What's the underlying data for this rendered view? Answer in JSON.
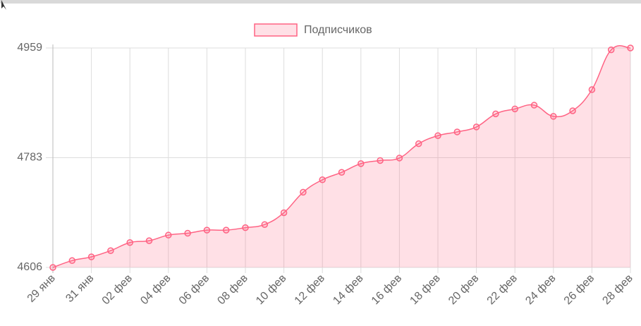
{
  "chart_data": {
    "type": "line",
    "legend": "top",
    "categories": [
      "29 янв",
      null,
      "31 янв",
      null,
      "02 фев",
      null,
      "04 фев",
      null,
      "06 фев",
      null,
      "08 фев",
      null,
      "10 фев",
      null,
      "12 фев",
      null,
      "14 фев",
      null,
      "16 фев",
      null,
      "18 фев",
      null,
      "20 фев",
      null,
      "22 фев",
      null,
      "24 фев",
      null,
      "26 фев",
      null,
      "28 фев"
    ],
    "series": [
      {
        "name": "Подписчиков",
        "color": "#ff6384",
        "fill": "rgba(255,99,132,0.2)",
        "values": [
          4606,
          4617,
          4623,
          4633,
          4646,
          4649,
          4658,
          4661,
          4666,
          4666,
          4670,
          4675,
          4694,
          4727,
          4747,
          4759,
          4773,
          4778,
          4782,
          4805,
          4818,
          4824,
          4832,
          4853,
          4861,
          4867,
          4849,
          4858,
          4892,
          4956,
          4959
        ]
      }
    ],
    "ylim": [
      4606,
      4959
    ],
    "yticks": [
      4606,
      {
        "value": 4782.5,
        "label": "4783"
      },
      4959
    ],
    "grid": true
  }
}
